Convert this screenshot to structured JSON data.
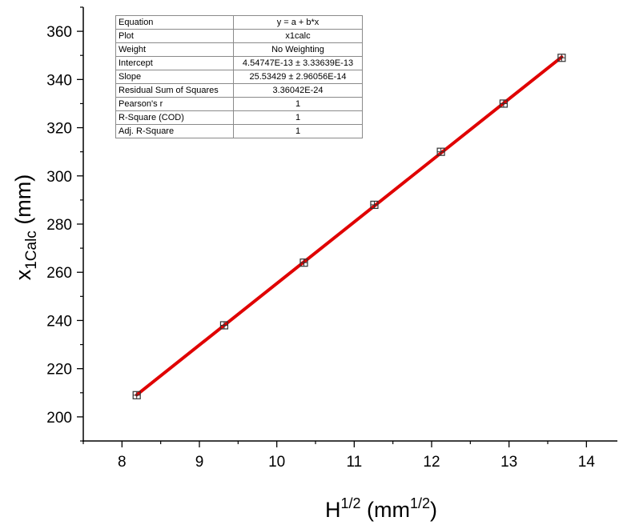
{
  "chart_data": {
    "type": "scatter",
    "xlabel": {
      "base": "H",
      "sup": "1/2",
      "unit_prefix": " (mm",
      "unit_sup": "1/2",
      "unit_suffix": ")"
    },
    "ylabel": {
      "base": "x",
      "sub": "1Calc",
      "unit": " (mm)"
    },
    "xlim": [
      7.5,
      14.4
    ],
    "ylim": [
      190,
      370
    ],
    "xticks": [
      "8",
      "9",
      "10",
      "11",
      "12",
      "13",
      "14"
    ],
    "yticks": [
      "200",
      "220",
      "240",
      "260",
      "280",
      "300",
      "320",
      "340",
      "360"
    ],
    "grid": false,
    "series": [
      {
        "marker": "square",
        "x": [
          8.19,
          9.32,
          10.35,
          11.26,
          12.12,
          12.93,
          13.68
        ],
        "y": [
          209,
          238,
          264,
          288,
          310,
          330,
          349
        ]
      }
    ],
    "fit_line": {
      "intercept": 4.54747e-13,
      "slope": 25.53429,
      "color": "#e00000",
      "x_range": [
        8.19,
        13.68
      ]
    },
    "stats_table": [
      {
        "key": "Equation",
        "value": "y = a + b*x"
      },
      {
        "key": "Plot",
        "value": "x1calc"
      },
      {
        "key": "Weight",
        "value": "No Weighting"
      },
      {
        "key": "Intercept",
        "value": "4.54747E-13 ± 3.33639E-13"
      },
      {
        "key": "Slope",
        "value": "25.53429 ± 2.96056E-14"
      },
      {
        "key": "Residual Sum of Squares",
        "value": "3.36042E-24"
      },
      {
        "key": "Pearson's r",
        "value": "1"
      },
      {
        "key": "R-Square (COD)",
        "value": "1"
      },
      {
        "key": "Adj. R-Square",
        "value": "1"
      }
    ]
  }
}
